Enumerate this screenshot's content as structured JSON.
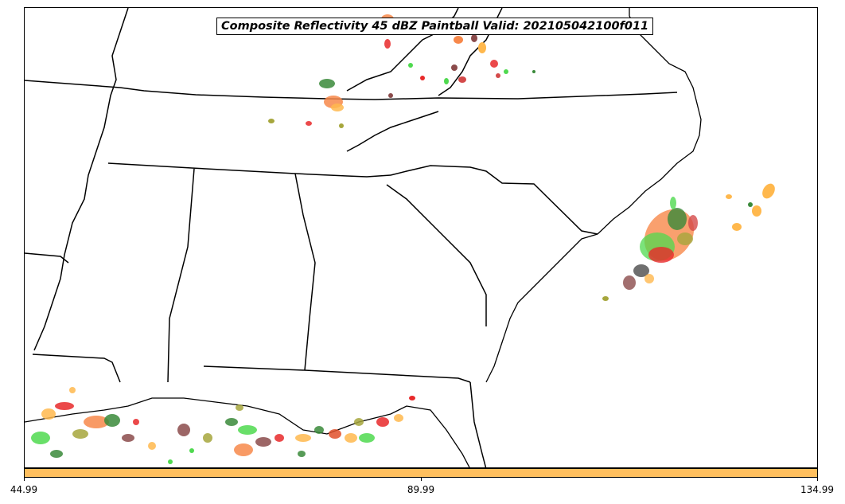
{
  "title": "Composite Reflectivity 45 dBZ Paintball Valid: 202105042100f011",
  "colorbar": {
    "color": "#ffbf5e",
    "ticks": [
      "44.99",
      "89.99",
      "134.99"
    ]
  },
  "colors": {
    "paintball_palette": [
      "#e8292a",
      "#f7884a",
      "#ffb84d",
      "#4fd94f",
      "#3a8a3a",
      "#8b4b4b",
      "#a6a63c",
      "#c8a13e",
      "#d44a4a",
      "#3f3f3f",
      "#e0502a"
    ]
  }
}
